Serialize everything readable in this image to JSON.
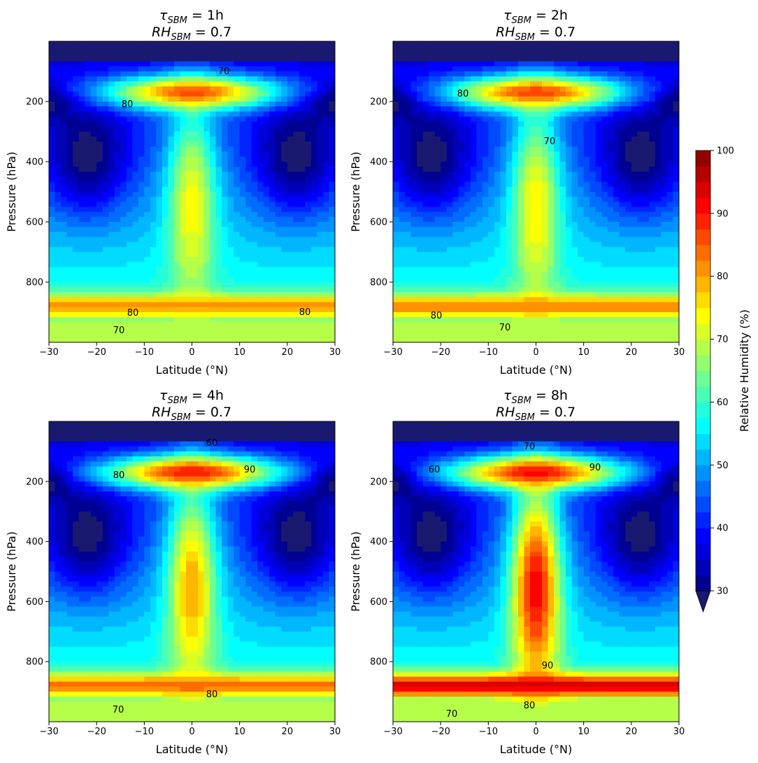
{
  "chart_data": {
    "type": "contour",
    "panels": [
      {
        "title": {
          "line1": "τ",
          "sub1": "SBM",
          "rest1": " = 1h",
          "line2": "RH",
          "sub2": "SBM",
          "rest2": " = 0.7"
        },
        "tau_hours": 1,
        "rh_sbm": 0.7,
        "xlabel": "Latitude (°N)",
        "ylabel": "Pressure (hPa)",
        "equator_max_rh": 74,
        "upper_max_rh": 86,
        "lower_max_rh": 81,
        "contour_labels": [
          "70",
          "80",
          "80",
          "80",
          "70"
        ]
      },
      {
        "title": {
          "line1": "τ",
          "sub1": "SBM",
          "rest1": " = 2h",
          "line2": "RH",
          "sub2": "SBM",
          "rest2": " = 0.7"
        },
        "tau_hours": 2,
        "rh_sbm": 0.7,
        "xlabel": "Latitude (°N)",
        "ylabel": "Pressure (hPa)",
        "equator_max_rh": 75,
        "upper_max_rh": 87,
        "lower_max_rh": 82,
        "contour_labels": [
          "80",
          "70",
          "80",
          "70"
        ]
      },
      {
        "title": {
          "line1": "τ",
          "sub1": "SBM",
          "rest1": " = 4h",
          "line2": "RH",
          "sub2": "SBM",
          "rest2": " = 0.7"
        },
        "tau_hours": 4,
        "rh_sbm": 0.7,
        "xlabel": "Latitude (°N)",
        "ylabel": "Pressure (hPa)",
        "equator_max_rh": 80,
        "upper_max_rh": 90,
        "lower_max_rh": 84,
        "contour_labels": [
          "60",
          "80",
          "90",
          "80",
          "70"
        ]
      },
      {
        "title": {
          "line1": "τ",
          "sub1": "SBM",
          "rest1": " = 8h",
          "line2": "RH",
          "sub2": "SBM",
          "rest2": " = 0.7"
        },
        "tau_hours": 8,
        "rh_sbm": 0.7,
        "xlabel": "Latitude (°N)",
        "ylabel": "Pressure (hPa)",
        "equator_max_rh": 92,
        "upper_max_rh": 91,
        "lower_max_rh": 94,
        "contour_labels": [
          "70",
          "60",
          "90",
          "90",
          "80",
          "70"
        ]
      }
    ],
    "x_range": [
      -30,
      30
    ],
    "x_ticks": [
      "−30",
      "−20",
      "−10",
      "0",
      "10",
      "20",
      "30"
    ],
    "x_tick_values": [
      -30,
      -20,
      -10,
      0,
      10,
      20,
      30
    ],
    "y_range": [
      1000,
      0
    ],
    "y_ticks": [
      "200",
      "400",
      "600",
      "800"
    ],
    "y_tick_values": [
      200,
      400,
      600,
      800
    ],
    "colorbar": {
      "label": "Relative Humidity (%)",
      "min": 30,
      "max": 100,
      "ticks": [
        "30",
        "40",
        "50",
        "60",
        "70",
        "80",
        "90",
        "100"
      ],
      "tick_values": [
        30,
        40,
        50,
        60,
        70,
        80,
        90,
        100
      ],
      "colormap": "jet",
      "extend": "min",
      "under_color": "#191970"
    }
  }
}
